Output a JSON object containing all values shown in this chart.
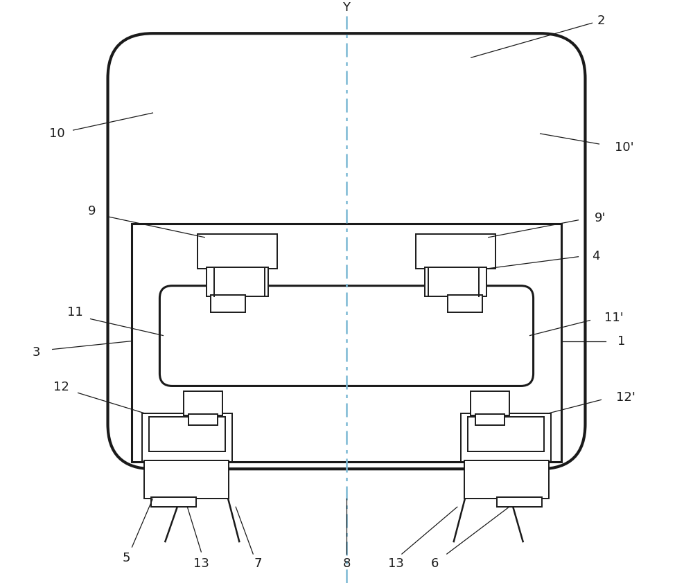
{
  "bg_color": "white",
  "line_color": "#1a1a1a",
  "center_line_color": "#7ab8d4",
  "body_lw": 3.0,
  "bogie_lw": 2.2,
  "detail_lw": 1.4,
  "font_size": 13
}
